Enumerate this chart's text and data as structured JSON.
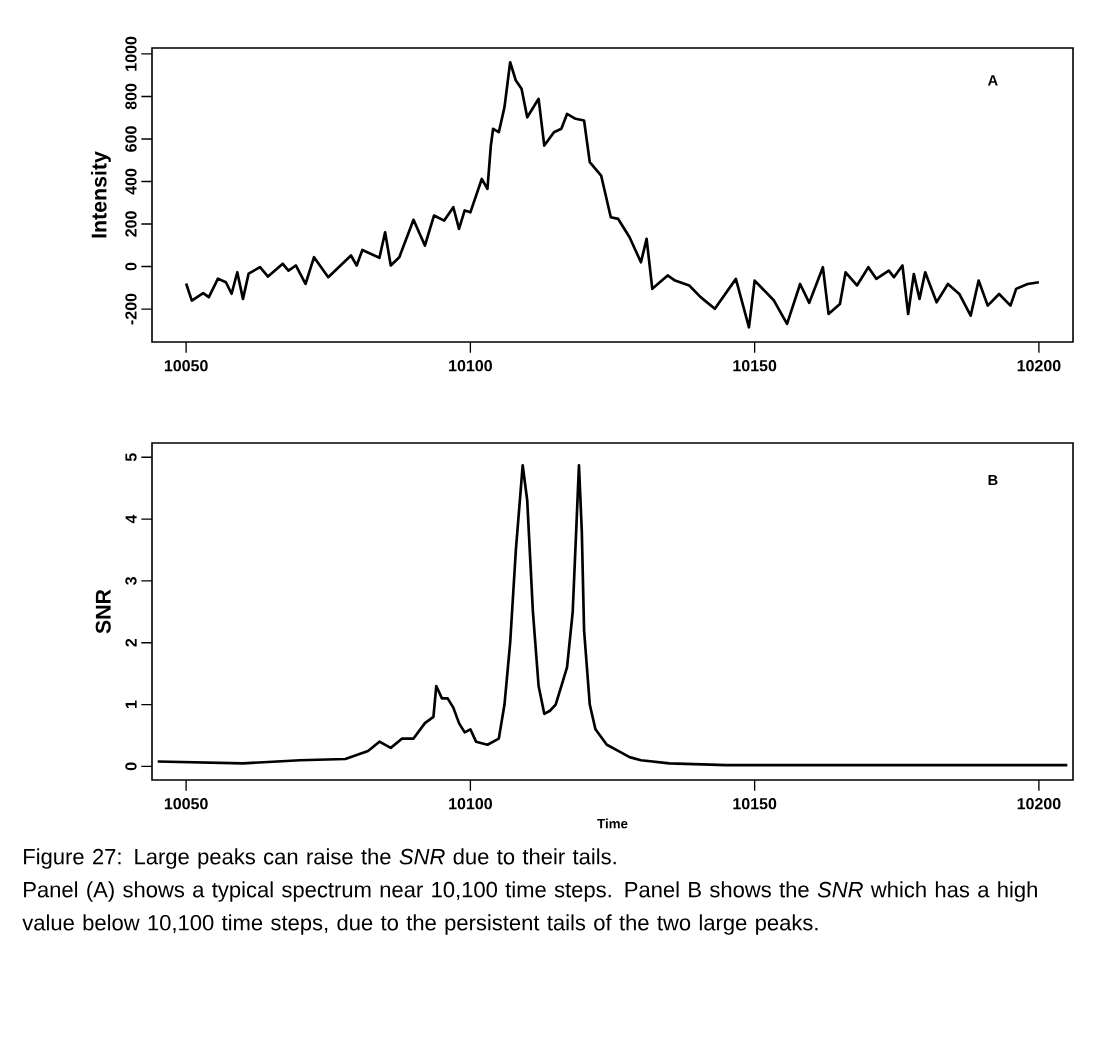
{
  "chart_data": [
    {
      "type": "line",
      "ylabel": "Intensity",
      "color": "#000000",
      "x": [
        10050,
        10051,
        10053,
        10054,
        10055.6,
        10057,
        10058,
        10059,
        10060,
        10061,
        10063,
        10064.4,
        10067,
        10068,
        10069.3,
        10071,
        10072.5,
        10075,
        10079,
        10080,
        10081,
        10084,
        10085,
        10086,
        10087.5,
        10090,
        10092,
        10093.6,
        10095.4,
        10097,
        10098,
        10099,
        10100,
        10102,
        10103,
        10103.6,
        10104,
        10105,
        10106,
        10107,
        10108,
        10109,
        10110,
        10112,
        10113,
        10114.7,
        10116,
        10117,
        10118.5,
        10120,
        10121,
        10123,
        10124.7,
        10126,
        10128,
        10130,
        10131,
        10132,
        10134.7,
        10136,
        10138.5,
        10140.5,
        10143,
        10146.7,
        10149,
        10150,
        10153.4,
        10155.7,
        10158,
        10159.6,
        10162,
        10163,
        10165,
        10166,
        10168,
        10170,
        10171.4,
        10173.6,
        10174.5,
        10176,
        10177,
        10178,
        10179,
        10180,
        10182,
        10184,
        10186,
        10188,
        10189.4,
        10191,
        10193,
        10195,
        10196,
        10198,
        10200
      ],
      "values": [
        -80,
        -160,
        -125,
        -144,
        -57,
        -74,
        -128,
        -27,
        -152,
        -33,
        -3,
        -47,
        13,
        -19,
        5,
        -82,
        44,
        -50,
        52,
        5,
        78,
        41,
        161,
        5,
        44,
        220,
        99,
        240,
        216,
        279,
        177,
        264,
        255,
        412,
        365,
        569,
        648,
        632,
        750,
        961,
        875,
        836,
        702,
        789,
        569,
        632,
        648,
        718,
        695,
        687,
        491,
        428,
        232,
        224,
        138,
        20,
        130,
        -105,
        -42,
        -66,
        -89,
        -144,
        -199,
        -58,
        -286,
        -66,
        -160,
        -270,
        -82,
        -171,
        -3,
        -223,
        -176,
        -27,
        -89,
        -3,
        -58,
        -19,
        -50,
        5,
        -223,
        -35,
        -152,
        -27,
        -168,
        -82,
        -129,
        -231,
        -66,
        -184,
        -129,
        -184,
        -105,
        -82,
        -74
      ],
      "xlim": [
        10044,
        10206
      ],
      "ylim": [
        -355,
        1028
      ],
      "xticks": [
        10050,
        10100,
        10150,
        10200
      ],
      "yticks": [
        -200,
        0,
        200,
        400,
        600,
        800,
        1000
      ],
      "annotations": [
        "A"
      ]
    },
    {
      "type": "line",
      "xlabel": "Time",
      "ylabel": "SNR",
      "color": "#000000",
      "x": [
        10045,
        10060,
        10070,
        10078,
        10082,
        10084,
        10086,
        10088,
        10090,
        10092,
        10093.5,
        10094,
        10095,
        10096,
        10097,
        10098,
        10099,
        10100,
        10101,
        10103,
        10105,
        10106,
        10107,
        10108,
        10109.2,
        10110,
        10111,
        10112,
        10113,
        10114,
        10115,
        10116,
        10117,
        10118,
        10118.7,
        10119.1,
        10119.6,
        10120,
        10121,
        10122,
        10124,
        10126,
        10128,
        10130,
        10135,
        10145,
        10160,
        10180,
        10205
      ],
      "values": [
        0.08,
        0.05,
        0.1,
        0.12,
        0.25,
        0.4,
        0.3,
        0.45,
        0.45,
        0.7,
        0.8,
        1.3,
        1.1,
        1.1,
        0.95,
        0.7,
        0.55,
        0.6,
        0.4,
        0.35,
        0.45,
        1.0,
        2.0,
        3.5,
        4.87,
        4.3,
        2.5,
        1.3,
        0.85,
        0.9,
        1.0,
        1.3,
        1.6,
        2.5,
        4.0,
        4.87,
        3.8,
        2.2,
        1.0,
        0.6,
        0.35,
        0.25,
        0.15,
        0.1,
        0.05,
        0.02,
        0.02,
        0.02,
        0.02
      ],
      "xlim": [
        10044,
        10206
      ],
      "ylim": [
        -0.22,
        5.23
      ],
      "xticks": [
        10050,
        10100,
        10150,
        10200
      ],
      "yticks": [
        0,
        1,
        2,
        3,
        4,
        5
      ],
      "annotations": [
        "B",
        "Figure 27: Large peaks can raise the *SNR* due to their tails.",
        "Panel (A) shows a typical spectrum near 10,100 time steps.  Panel B shows the *SNR* which has a high value below 10,100 time steps, due to the persistent tails of the two large peaks."
      ]
    }
  ]
}
